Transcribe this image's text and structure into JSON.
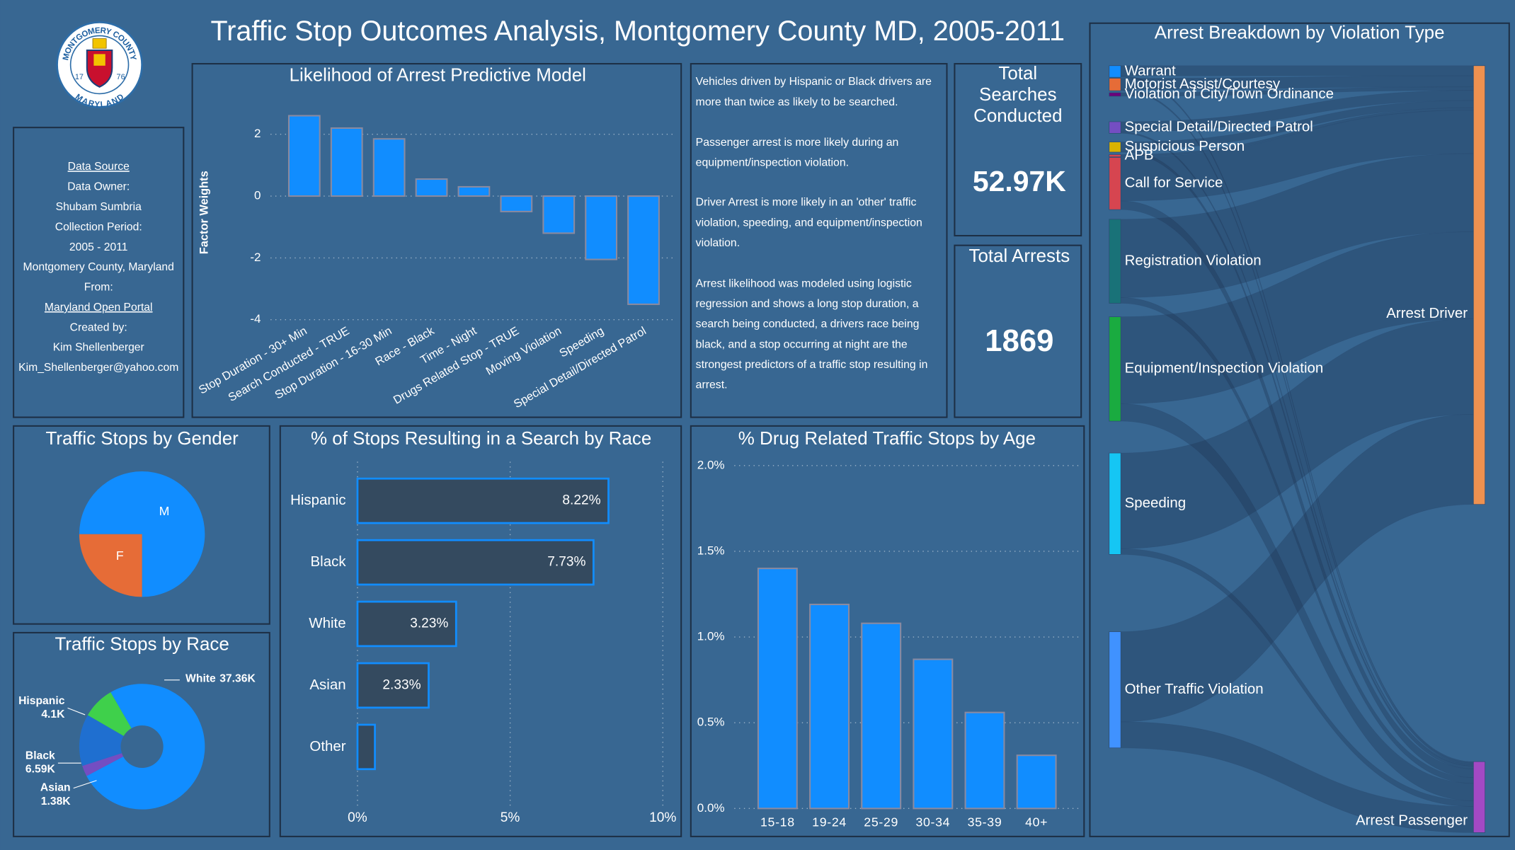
{
  "title": "Traffic Stop Outcomes Analysis, Montgomery County MD, 2005-2011",
  "logo": {
    "top": "MONTGOMERY COUNTY",
    "bottom": "MARYLAND",
    "left": "17",
    "right": "76"
  },
  "data_source": {
    "lines": [
      "Data Source",
      "Data Owner:",
      "Shubam Sumbria",
      "Collection Period:",
      "2005 - 2011",
      "Montgomery County, Maryland",
      "From:",
      "Maryland Open Portal",
      "Created by:",
      "Kim Shellenberger",
      "Kim_Shellenberger@yahoo.com"
    ]
  },
  "insights": [
    "Vehicles driven by Hispanic or Black drivers are more than twice as likely to be searched.",
    "Passenger arrest is more likely during an equipment/inspection violation.",
    "Driver Arrest is more likely in an 'other' traffic violation, speeding, and equipment/inspection violation.",
    "Arrest likelihood was modeled using logistic regression and shows a long stop duration, a search being conducted, a drivers race being black, and a stop occurring at night are the strongest predictors of a traffic stop resulting in arrest."
  ],
  "kpis": [
    {
      "label": "Total Searches Conducted",
      "value": "52.97K"
    },
    {
      "label": "Total Arrests",
      "value": "1869"
    }
  ],
  "chart_data": [
    {
      "type": "bar",
      "title": "Likelihood of Arrest Predictive Model",
      "y_label": "Factor Weights",
      "categories": [
        "Stop Duration - 30+ Min",
        "Search Conducted - TRUE",
        "Stop Duration - 16-30 Min",
        "Race - Black",
        "Time - Night",
        "Drugs Related Stop - TRUE",
        "Moving Violation",
        "Speeding",
        "Special Detail/Directed Patrol"
      ],
      "values": [
        2.6,
        2.2,
        1.85,
        0.55,
        0.3,
        -0.5,
        -1.2,
        -2.05,
        -3.5
      ],
      "color": "#118dff",
      "ylim": [
        -4,
        3
      ],
      "yticks": [
        -4,
        -2,
        0,
        2
      ],
      "grid": true
    },
    {
      "type": "pie",
      "title": "Traffic Stops by Gender",
      "categories": [
        "M",
        "F"
      ],
      "values": [
        75,
        25
      ],
      "colors": [
        "#118dff",
        "#e66c37"
      ]
    },
    {
      "type": "donut",
      "title": "Traffic Stops by Race",
      "categories": [
        "White",
        "Asian",
        "Black",
        "Hispanic"
      ],
      "values": [
        37.36,
        1.38,
        6.59,
        4.1
      ],
      "value_labels": [
        "37.36K",
        "1.38K",
        "6.59K",
        "4.1K"
      ],
      "colors": [
        "#118dff",
        "#744ec2",
        "#1f6fd0",
        "#3fd04b"
      ]
    },
    {
      "type": "hbar",
      "title": "% of Stops Resulting in a Search by Race",
      "categories": [
        "Hispanic",
        "Black",
        "White",
        "Asian",
        "Other"
      ],
      "values": [
        8.22,
        7.73,
        3.23,
        2.33,
        0.57
      ],
      "value_labels": [
        "8.22%",
        "7.73%",
        "3.23%",
        "2.33%",
        null
      ],
      "color": "#344a5f",
      "border": "#118dff",
      "xlim": [
        0,
        10
      ],
      "xticks": [
        {
          "value": 0,
          "label": "0%"
        },
        {
          "value": 5,
          "label": "5%"
        },
        {
          "value": 10,
          "label": "10%"
        }
      ],
      "grid": true
    },
    {
      "type": "bar",
      "title": "% Drug Related Traffic Stops by Age",
      "categories": [
        "15-18",
        "19-24",
        "25-29",
        "30-34",
        "35-39",
        "40+"
      ],
      "values": [
        1.4,
        1.19,
        1.08,
        0.87,
        0.56,
        0.31
      ],
      "color": "#118dff",
      "ylim": [
        0,
        2
      ],
      "yticks": [
        {
          "value": 0,
          "label": "0.0%"
        },
        {
          "value": 0.5,
          "label": "0.5%"
        },
        {
          "value": 1,
          "label": "1.0%"
        },
        {
          "value": 1.5,
          "label": "1.5%"
        },
        {
          "value": 2,
          "label": "2.0%"
        }
      ],
      "grid": true
    },
    {
      "type": "sankey",
      "title": "Arrest Breakdown by Violation Type",
      "nodes": [
        {
          "name": "Warrant",
          "color": "#118dff"
        },
        {
          "name": "Motorist Assist/Courtesy",
          "color": "#e66c37"
        },
        {
          "name": "Violation of City/Town Ordinance",
          "color": "#6b007b"
        },
        {
          "name": "Special Detail/Directed Patrol",
          "color": "#744ec2"
        },
        {
          "name": "Suspicious Person",
          "color": "#d9b300"
        },
        {
          "name": "APB",
          "color": "#d64550"
        },
        {
          "name": "Call for Service",
          "color": "#d64550"
        },
        {
          "name": "Registration Violation",
          "color": "#197278"
        },
        {
          "name": "Equipment/Inspection Violation",
          "color": "#1aab40"
        },
        {
          "name": "Speeding",
          "color": "#15c6f4"
        },
        {
          "name": "Other Traffic Violation",
          "color": "#4092ff"
        },
        {
          "name": "Arrest Driver",
          "color": "#ee9150"
        },
        {
          "name": "Arrest Passenger",
          "color": "#a349c4"
        }
      ],
      "links": [
        {
          "source": "Warrant",
          "target": "Arrest Driver",
          "value": 35
        },
        {
          "source": "Warrant",
          "target": "Arrest Passenger",
          "value": 5
        },
        {
          "source": "Motorist Assist/Courtesy",
          "target": "Arrest Driver",
          "value": 38
        },
        {
          "source": "Motorist Assist/Courtesy",
          "target": "Arrest Passenger",
          "value": 5
        },
        {
          "source": "Violation of City/Town Ordinance",
          "target": "Arrest Driver",
          "value": 12
        },
        {
          "source": "Special Detail/Directed Patrol",
          "target": "Arrest Driver",
          "value": 35
        },
        {
          "source": "Special Detail/Directed Patrol",
          "target": "Arrest Passenger",
          "value": 5
        },
        {
          "source": "Suspicious Person",
          "target": "Arrest Driver",
          "value": 25
        },
        {
          "source": "Suspicious Person",
          "target": "Arrest Passenger",
          "value": 10
        },
        {
          "source": "APB",
          "target": "Arrest Driver",
          "value": 8
        },
        {
          "source": "Call for Service",
          "target": "Arrest Driver",
          "value": 150
        },
        {
          "source": "Call for Service",
          "target": "Arrest Passenger",
          "value": 30
        },
        {
          "source": "Registration Violation",
          "target": "Arrest Driver",
          "value": 270
        },
        {
          "source": "Registration Violation",
          "target": "Arrest Passenger",
          "value": 20
        },
        {
          "source": "Equipment/Inspection Violation",
          "target": "Arrest Driver",
          "value": 300
        },
        {
          "source": "Equipment/Inspection Violation",
          "target": "Arrest Passenger",
          "value": 60
        },
        {
          "source": "Speeding",
          "target": "Arrest Driver",
          "value": 330
        },
        {
          "source": "Speeding",
          "target": "Arrest Passenger",
          "value": 20
        },
        {
          "source": "Other Traffic Violation",
          "target": "Arrest Driver",
          "value": 311
        },
        {
          "source": "Other Traffic Violation",
          "target": "Arrest Passenger",
          "value": 90
        }
      ]
    }
  ]
}
